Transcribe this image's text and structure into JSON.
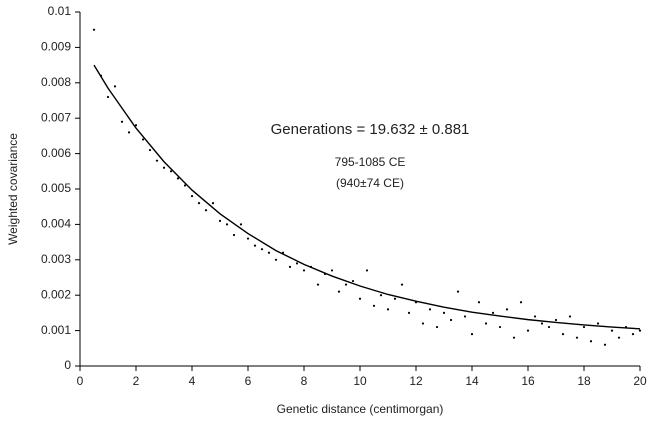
{
  "chart_data": {
    "type": "scatter",
    "xlabel": "Genetic distance (centimorgan)",
    "ylabel": "Weighted covariance",
    "annotations": [
      "Generations = 19.632 ± 0.881",
      "795-1085 CE",
      "(940±74 CE)"
    ],
    "xlim": [
      0,
      20
    ],
    "ylim": [
      0,
      0.01
    ],
    "xticks": [
      0,
      2,
      4,
      6,
      8,
      10,
      12,
      14,
      16,
      18,
      20
    ],
    "yticks": [
      0,
      0.001,
      0.002,
      0.003,
      0.004,
      0.005,
      0.006,
      0.007,
      0.008,
      0.009,
      0.01
    ],
    "grid": false,
    "series": [
      {
        "type": "scatter",
        "color": "#000000",
        "x": [
          0.5,
          0.75,
          1,
          1.25,
          1.5,
          1.75,
          2,
          2.25,
          2.5,
          2.75,
          3,
          3.25,
          3.5,
          3.75,
          4,
          4.25,
          4.5,
          4.75,
          5,
          5.25,
          5.5,
          5.75,
          6,
          6.25,
          6.5,
          6.75,
          7,
          7.25,
          7.5,
          7.75,
          8,
          8.25,
          8.5,
          8.75,
          9,
          9.25,
          9.5,
          9.75,
          10,
          10.25,
          10.5,
          10.75,
          11,
          11.25,
          11.5,
          11.75,
          12,
          12.25,
          12.5,
          12.75,
          13,
          13.25,
          13.5,
          13.75,
          14,
          14.25,
          14.5,
          14.75,
          15,
          15.25,
          15.5,
          15.75,
          16,
          16.25,
          16.5,
          16.75,
          17,
          17.25,
          17.5,
          17.75,
          18,
          18.25,
          18.5,
          18.75,
          19,
          19.25,
          19.5,
          19.75,
          20
        ],
        "values": [
          0.0095,
          0.0082,
          0.0076,
          0.0079,
          0.0069,
          0.0066,
          0.0068,
          0.0064,
          0.0061,
          0.0058,
          0.0056,
          0.0055,
          0.0053,
          0.0051,
          0.0048,
          0.0046,
          0.0044,
          0.0046,
          0.0041,
          0.004,
          0.0037,
          0.004,
          0.0036,
          0.0034,
          0.0033,
          0.0032,
          0.003,
          0.0032,
          0.0028,
          0.0029,
          0.0027,
          0.0028,
          0.0023,
          0.0026,
          0.0027,
          0.0021,
          0.0023,
          0.0024,
          0.0019,
          0.0027,
          0.0017,
          0.002,
          0.0016,
          0.0019,
          0.0023,
          0.0015,
          0.0018,
          0.0012,
          0.0016,
          0.0011,
          0.0015,
          0.0013,
          0.0021,
          0.0014,
          0.0009,
          0.0018,
          0.0012,
          0.0015,
          0.0011,
          0.0016,
          0.0008,
          0.0018,
          0.001,
          0.0014,
          0.0012,
          0.0011,
          0.0013,
          0.0009,
          0.0014,
          0.0008,
          0.0011,
          0.0007,
          0.0012,
          0.0006,
          0.001,
          0.0008,
          0.0011,
          0.0009,
          0.001
        ]
      },
      {
        "type": "line",
        "color": "#000000",
        "x": [
          0.5,
          1,
          2,
          3,
          4,
          5,
          6,
          7,
          8,
          9,
          10,
          11,
          12,
          13,
          14,
          15,
          16,
          17,
          18,
          19,
          20
        ],
        "values": [
          0.0085,
          0.00785,
          0.00672,
          0.00577,
          0.00497,
          0.0043,
          0.00374,
          0.00326,
          0.00287,
          0.00254,
          0.00226,
          0.00202,
          0.00183,
          0.00166,
          0.00152,
          0.00141,
          0.00131,
          0.00123,
          0.00116,
          0.0011,
          0.00105
        ]
      }
    ]
  }
}
